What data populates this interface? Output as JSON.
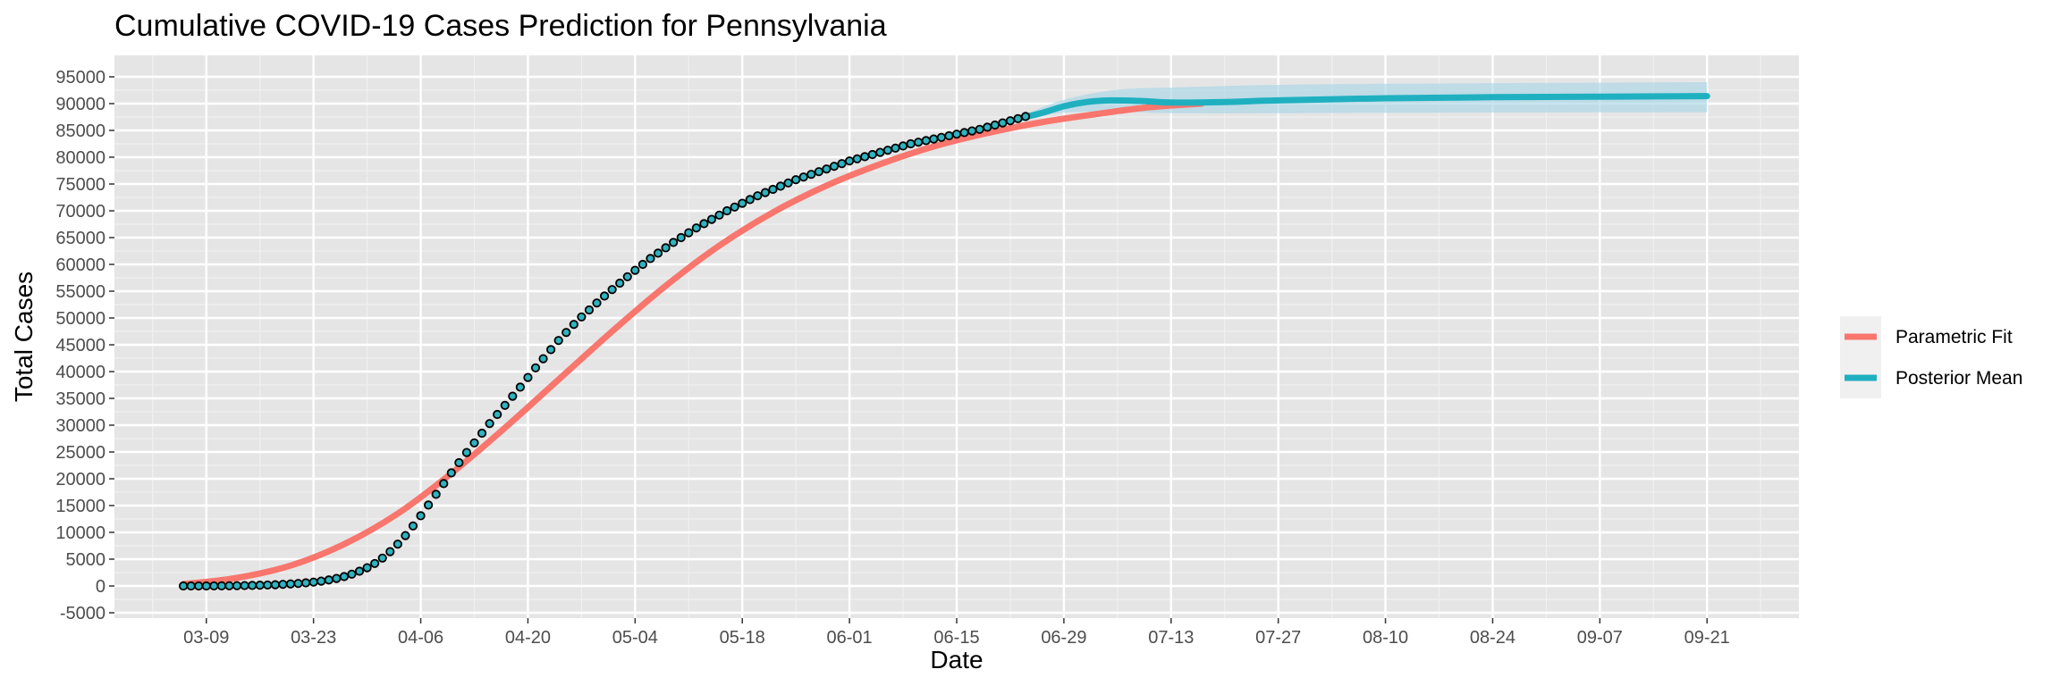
{
  "colors": {
    "panel_bg": "#E5E5E5",
    "grid_major": "#FFFFFF",
    "grid_minor": "#F0F0F0",
    "parametric": "#F8766D",
    "posterior": "#1FB0C0",
    "ribbon": "#A9D5E6",
    "points_fill": "#2EB3C0",
    "points_stroke": "#000000",
    "legend_key_bg": "#F0F0F0"
  },
  "chart_data": {
    "type": "line",
    "title": "Cumulative COVID-19 Cases Prediction for Pennsylvania",
    "xlabel": "Date",
    "ylabel": "Total Cases",
    "year": 2020,
    "xlim": [
      "2020-02-26",
      "2020-10-03"
    ],
    "ylim": [
      -6000,
      99000
    ],
    "x_ticks": [
      "03-09",
      "03-23",
      "04-06",
      "04-20",
      "05-04",
      "05-18",
      "06-01",
      "06-15",
      "06-29",
      "07-13",
      "07-27",
      "08-10",
      "08-24",
      "09-07",
      "09-21"
    ],
    "y_ticks": [
      -5000,
      0,
      5000,
      10000,
      15000,
      20000,
      25000,
      30000,
      35000,
      40000,
      45000,
      50000,
      55000,
      60000,
      65000,
      70000,
      75000,
      80000,
      85000,
      90000,
      95000
    ],
    "y_tick_labels": [
      "-5000",
      "0",
      "5000",
      "10000",
      "15000",
      "20000",
      "25000",
      "30000",
      "35000",
      "40000",
      "45000",
      "50000",
      "55000",
      "60000",
      "65000",
      "70000",
      "75000",
      "80000",
      "85000",
      "90000",
      "95000"
    ],
    "grid": true,
    "legend_position": "right",
    "series": [
      {
        "name": "Parametric Fit",
        "kind": "line",
        "points": [
          [
            "2020-03-06",
            350
          ],
          [
            "2020-03-13",
            1500
          ],
          [
            "2020-03-20",
            3800
          ],
          [
            "2020-03-27",
            7800
          ],
          [
            "2020-04-03",
            13500
          ],
          [
            "2020-04-10",
            21000
          ],
          [
            "2020-04-17",
            29500
          ],
          [
            "2020-04-24",
            38500
          ],
          [
            "2020-05-01",
            47500
          ],
          [
            "2020-05-08",
            56000
          ],
          [
            "2020-05-15",
            63500
          ],
          [
            "2020-05-22",
            69700
          ],
          [
            "2020-05-29",
            74700
          ],
          [
            "2020-06-05",
            78700
          ],
          [
            "2020-06-12",
            82000
          ],
          [
            "2020-06-19",
            84500
          ],
          [
            "2020-06-26",
            86500
          ],
          [
            "2020-07-03",
            88000
          ],
          [
            "2020-07-10",
            89300
          ],
          [
            "2020-07-17",
            90000
          ]
        ]
      },
      {
        "name": "Posterior Mean",
        "kind": "line",
        "points": [
          [
            "2020-06-23",
            87200
          ],
          [
            "2020-06-26",
            88200
          ],
          [
            "2020-06-29",
            89500
          ],
          [
            "2020-07-02",
            90300
          ],
          [
            "2020-07-05",
            90600
          ],
          [
            "2020-07-09",
            90500
          ],
          [
            "2020-07-13",
            90200
          ],
          [
            "2020-07-20",
            90300
          ],
          [
            "2020-07-27",
            90600
          ],
          [
            "2020-08-10",
            91000
          ],
          [
            "2020-08-24",
            91200
          ],
          [
            "2020-09-07",
            91300
          ],
          [
            "2020-09-21",
            91400
          ]
        ],
        "band": [
          [
            "2020-06-23",
            87000,
            87400
          ],
          [
            "2020-06-29",
            88300,
            90700
          ],
          [
            "2020-07-06",
            88500,
            92600
          ],
          [
            "2020-07-13",
            88200,
            93000
          ],
          [
            "2020-07-27",
            88200,
            93500
          ],
          [
            "2020-08-10",
            88300,
            93700
          ],
          [
            "2020-09-21",
            88400,
            94000
          ]
        ]
      },
      {
        "name": "Observed",
        "kind": "points",
        "start": "2020-03-06",
        "values": [
          0,
          0,
          0,
          0,
          10,
          20,
          30,
          50,
          70,
          100,
          140,
          180,
          230,
          300,
          380,
          470,
          580,
          720,
          900,
          1120,
          1400,
          1750,
          2200,
          2750,
          3400,
          4200,
          5200,
          6400,
          7800,
          9400,
          11200,
          13100,
          15100,
          17100,
          19100,
          21100,
          23000,
          24900,
          26700,
          28500,
          30300,
          32000,
          33700,
          35400,
          37100,
          38900,
          40700,
          42400,
          44100,
          45800,
          47300,
          48800,
          50200,
          51500,
          52800,
          54100,
          55300,
          56500,
          57700,
          58900,
          60000,
          61100,
          62100,
          63100,
          64100,
          65000,
          65900,
          66800,
          67600,
          68400,
          69200,
          70000,
          70700,
          71400,
          72100,
          72800,
          73400,
          74000,
          74600,
          75200,
          75800,
          76300,
          76800,
          77300,
          77800,
          78300,
          78800,
          79300,
          79700,
          80100,
          80500,
          80900,
          81300,
          81700,
          82100,
          82500,
          82800,
          83100,
          83400,
          83700,
          84000,
          84300,
          84600,
          84900,
          85200,
          85600,
          86000,
          86400,
          86800,
          87200,
          87600
        ]
      }
    ]
  },
  "legend": {
    "items": [
      {
        "label": "Parametric Fit",
        "color": "#F8766D"
      },
      {
        "label": "Posterior Mean",
        "color": "#1FB0C0"
      }
    ]
  }
}
